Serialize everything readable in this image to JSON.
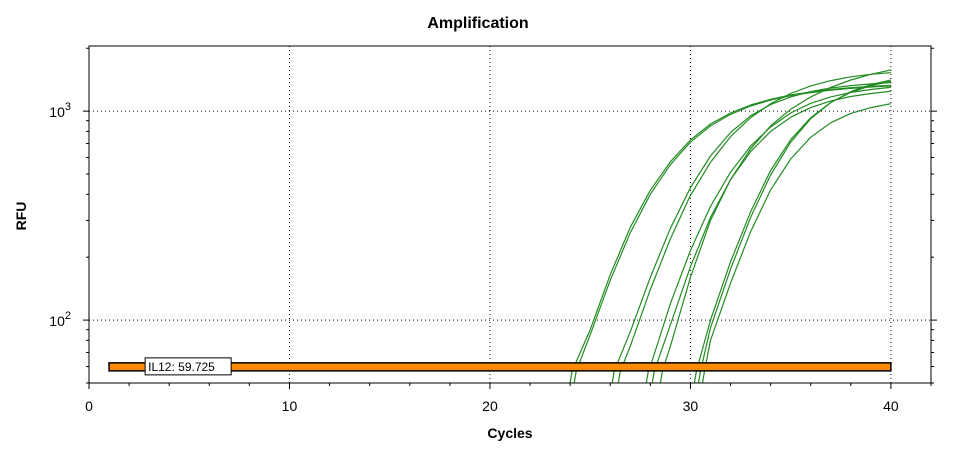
{
  "chart_data": {
    "type": "line",
    "title": "Amplification",
    "xlabel": "Cycles",
    "ylabel": "RFU",
    "x_scale": "linear",
    "y_scale": "log",
    "xlim": [
      0,
      42
    ],
    "ylim": [
      50,
      2050
    ],
    "x_ticks": [
      {
        "value": 0,
        "label": "0"
      },
      {
        "value": 10,
        "label": "10"
      },
      {
        "value": 20,
        "label": "20"
      },
      {
        "value": 30,
        "label": "30"
      },
      {
        "value": 40,
        "label": "40"
      }
    ],
    "y_ticks": [
      {
        "value": 100,
        "label": "10",
        "exp": "2"
      },
      {
        "value": 1000,
        "label": "10",
        "exp": "3"
      }
    ],
    "grid": true,
    "grid_style": "dotted",
    "series_color": "#228b22",
    "series": [
      {
        "x": [
          24.1,
          25,
          26,
          27,
          28,
          29,
          30,
          31,
          32,
          33,
          34,
          35,
          36,
          37,
          38,
          39,
          40
        ],
        "y": [
          57,
          90,
          165,
          278,
          418,
          573,
          728,
          868,
          980,
          1070,
          1140,
          1195,
          1235,
          1270,
          1295,
          1315,
          1330
        ]
      },
      {
        "x": [
          24.3,
          25,
          26,
          27,
          28,
          29,
          30,
          31,
          32,
          33,
          34,
          35,
          36,
          37,
          38,
          39,
          40
        ],
        "y": [
          57,
          85,
          155,
          262,
          400,
          555,
          710,
          850,
          965,
          1058,
          1130,
          1185,
          1225,
          1260,
          1285,
          1305,
          1320
        ]
      },
      {
        "x": [
          26.2,
          27,
          28,
          29,
          30,
          31,
          32,
          33,
          34,
          35,
          36,
          37,
          38,
          39,
          40
        ],
        "y": [
          57,
          88,
          160,
          275,
          430,
          610,
          790,
          950,
          1075,
          1170,
          1240,
          1290,
          1325,
          1350,
          1370
        ]
      },
      {
        "x": [
          26.5,
          27,
          28,
          29,
          30,
          31,
          32,
          33,
          34,
          35,
          36,
          37,
          38,
          39,
          40
        ],
        "y": [
          57,
          75,
          140,
          245,
          395,
          570,
          755,
          930,
          1085,
          1215,
          1320,
          1400,
          1460,
          1500,
          1530
        ]
      },
      {
        "x": [
          27.9,
          28,
          29,
          30,
          31,
          32,
          33,
          34,
          35,
          36,
          37,
          38,
          39,
          40
        ],
        "y": [
          57,
          60,
          120,
          215,
          350,
          510,
          680,
          840,
          980,
          1090,
          1170,
          1230,
          1270,
          1300
        ]
      },
      {
        "x": [
          28.2,
          29,
          30,
          31,
          32,
          33,
          34,
          35,
          36,
          37,
          38,
          39,
          40
        ],
        "y": [
          57,
          95,
          180,
          310,
          470,
          640,
          800,
          935,
          1040,
          1120,
          1175,
          1215,
          1245
        ]
      },
      {
        "x": [
          28.6,
          29,
          30,
          31,
          32,
          33,
          34,
          35,
          36,
          37,
          38,
          39,
          40
        ],
        "y": [
          57,
          75,
          160,
          300,
          470,
          660,
          850,
          1020,
          1170,
          1300,
          1410,
          1500,
          1575
        ]
      },
      {
        "x": [
          30.3,
          31,
          32,
          33,
          34,
          35,
          36,
          37,
          38,
          39,
          40
        ],
        "y": [
          57,
          100,
          190,
          330,
          520,
          730,
          930,
          1100,
          1230,
          1325,
          1390
        ]
      },
      {
        "x": [
          30.5,
          31,
          32,
          33,
          34,
          35,
          36,
          37,
          38,
          39,
          40
        ],
        "y": [
          57,
          92,
          175,
          310,
          495,
          710,
          920,
          1100,
          1240,
          1340,
          1410
        ]
      },
      {
        "x": [
          30.7,
          31,
          32,
          33,
          34,
          35,
          36,
          37,
          38,
          39,
          40
        ],
        "y": [
          57,
          80,
          150,
          265,
          420,
          590,
          750,
          880,
          975,
          1040,
          1085
        ]
      }
    ],
    "threshold": {
      "label": "IL12: 59.725",
      "value": 59.725,
      "x_range": [
        1,
        40
      ],
      "line_color": "#000000",
      "fill_color": "#ff8c00"
    }
  }
}
